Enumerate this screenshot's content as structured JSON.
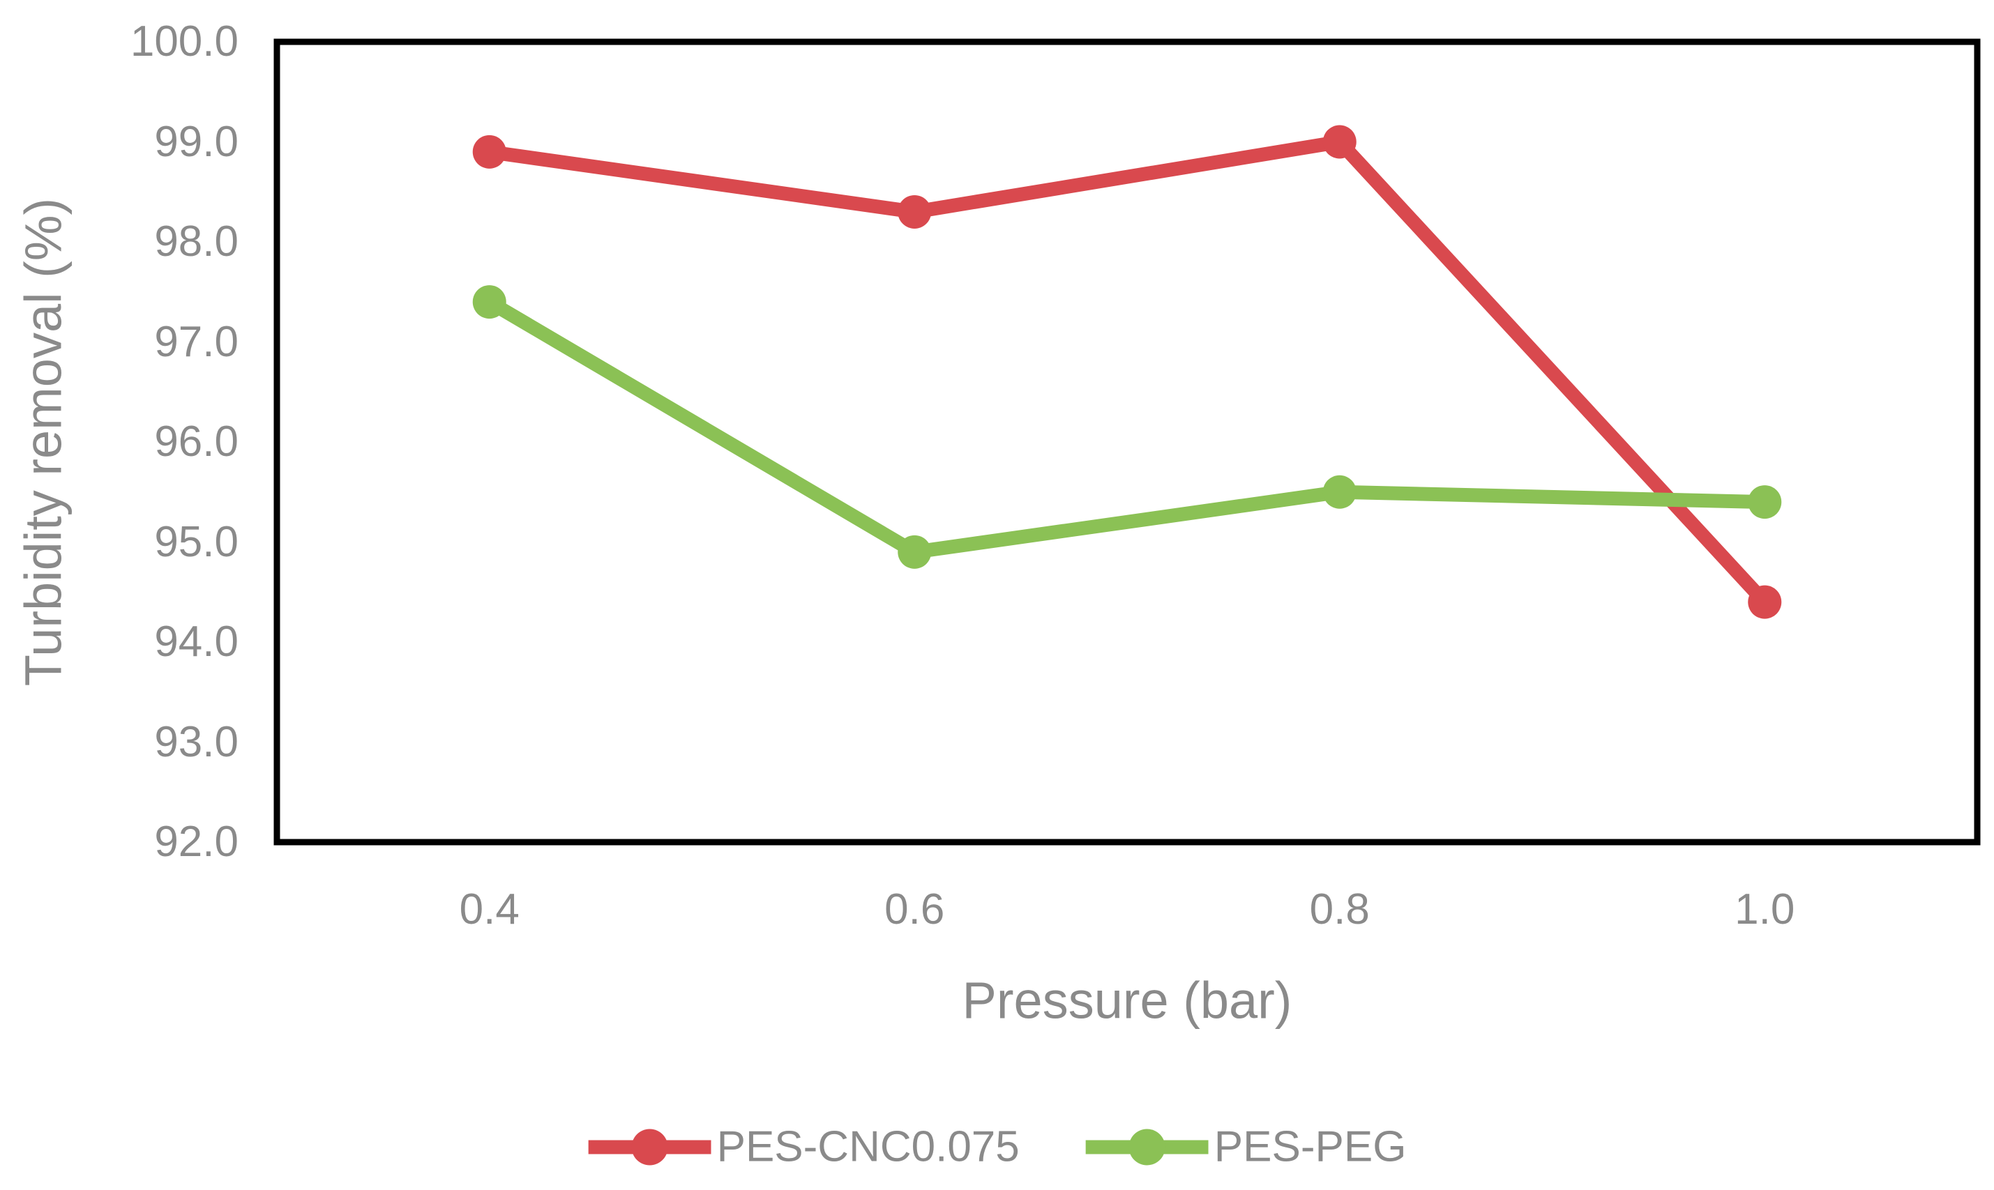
{
  "chart_data": {
    "type": "line",
    "title": "",
    "xlabel": "Pressure (bar)",
    "ylabel": "Turbidity removal (%)",
    "categories": [
      "0.4",
      "0.6",
      "0.8",
      "1.0"
    ],
    "series": [
      {
        "name": "PES-CNC0.075",
        "color": "#d9494e",
        "values": [
          98.9,
          98.3,
          99.0,
          94.4
        ]
      },
      {
        "name": "PES-PEG",
        "color": "#8bc155",
        "values": [
          97.4,
          94.9,
          95.5,
          95.4
        ]
      }
    ],
    "ylim": [
      92.0,
      100.0
    ],
    "ytick_step": 1.0,
    "yticks": [
      "100.0",
      "99.0",
      "98.0",
      "97.0",
      "96.0",
      "95.0",
      "94.0",
      "93.0",
      "92.0"
    ],
    "grid": false,
    "marker": "circle",
    "legend_position": "bottom-center",
    "colors": {
      "axis_frame": "#000000",
      "tick_label": "#8a8a8a",
      "background": "#ffffff"
    }
  }
}
